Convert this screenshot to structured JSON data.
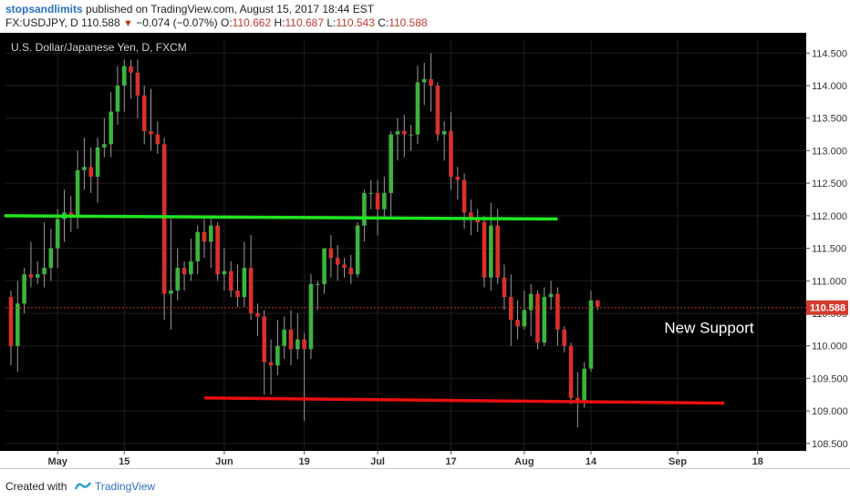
{
  "header": {
    "author": "stopsandlimits",
    "published": "published on TradingView.com, August 15, 2017 18:44 EST",
    "symbol": "FX:USDJPY, D",
    "price": "110.588",
    "change": "−0.074 (−0.07%)",
    "o_label": "O:",
    "o_value": "110.662",
    "h_label": "H:",
    "h_value": "110.687",
    "l_label": "L:",
    "l_value": "110.543",
    "c_label": "C:",
    "c_value": "110.588"
  },
  "footer": {
    "created_with": "Created with",
    "brand": "TradingView",
    "logo_icon": "tradingview-logo-icon"
  },
  "colors": {
    "bull": "#3cb43c",
    "bear": "#d9302c",
    "support_line": "#1fe61f",
    "resistance_line": "#e80f0f",
    "background": "#000000",
    "grid": "#1e1e1e"
  },
  "chart_data": {
    "type": "candlestick",
    "title": "U.S. Dollar/Japanese Yen, D, FXCM",
    "ylim": [
      108.4,
      114.7
    ],
    "y_ticks": [
      "114.500",
      "114.000",
      "113.500",
      "113.000",
      "112.500",
      "112.000",
      "111.500",
      "111.000",
      "110.500",
      "110.000",
      "109.500",
      "109.000",
      "108.500"
    ],
    "x_labels": [
      {
        "label": "May",
        "index": 7
      },
      {
        "label": "15",
        "index": 17
      },
      {
        "label": "Jun",
        "index": 32
      },
      {
        "label": "19",
        "index": 44
      },
      {
        "label": "Jul",
        "index": 55
      },
      {
        "label": "17",
        "index": 66
      },
      {
        "label": "Aug",
        "index": 77
      },
      {
        "label": "14",
        "index": 87
      },
      {
        "label": "Sep",
        "index": 100
      },
      {
        "label": "18",
        "index": 112
      }
    ],
    "candles": [
      [
        110.75,
        110.0,
        110.85,
        109.7
      ],
      [
        110.0,
        110.65,
        111.0,
        109.6
      ],
      [
        110.65,
        111.1,
        111.2,
        110.5
      ],
      [
        111.1,
        111.05,
        111.6,
        110.9
      ],
      [
        111.05,
        111.1,
        111.3,
        110.95
      ],
      [
        111.1,
        111.2,
        111.9,
        110.9
      ],
      [
        111.2,
        111.5,
        111.8,
        111.0
      ],
      [
        111.5,
        111.95,
        112.1,
        111.2
      ],
      [
        111.95,
        112.05,
        112.4,
        111.6
      ],
      [
        112.05,
        112.0,
        112.3,
        111.75
      ],
      [
        112.0,
        112.7,
        113.0,
        111.8
      ],
      [
        112.7,
        112.75,
        113.2,
        112.4
      ],
      [
        112.75,
        112.6,
        113.05,
        112.35
      ],
      [
        112.6,
        113.05,
        113.2,
        112.2
      ],
      [
        113.05,
        113.1,
        113.5,
        112.9
      ],
      [
        113.1,
        113.6,
        113.9,
        112.9
      ],
      [
        113.6,
        114.0,
        114.3,
        113.4
      ],
      [
        114.0,
        114.3,
        114.4,
        113.6
      ],
      [
        114.3,
        114.2,
        114.4,
        113.8
      ],
      [
        114.2,
        113.85,
        114.4,
        113.5
      ],
      [
        113.85,
        113.3,
        114.0,
        113.1
      ],
      [
        113.3,
        113.25,
        113.95,
        113.0
      ],
      [
        113.25,
        113.1,
        113.45,
        112.95
      ],
      [
        113.1,
        110.8,
        113.2,
        110.4
      ],
      [
        110.8,
        110.85,
        111.95,
        110.25
      ],
      [
        110.85,
        111.2,
        111.5,
        110.7
      ],
      [
        111.2,
        111.1,
        111.3,
        110.85
      ],
      [
        111.1,
        111.3,
        111.65,
        111.0
      ],
      [
        111.3,
        111.75,
        111.85,
        111.1
      ],
      [
        111.75,
        111.6,
        111.95,
        111.35
      ],
      [
        111.6,
        111.85,
        111.95,
        111.2
      ],
      [
        111.85,
        111.1,
        111.9,
        111.0
      ],
      [
        111.1,
        111.15,
        111.5,
        110.85
      ],
      [
        111.15,
        110.85,
        111.3,
        110.75
      ],
      [
        110.85,
        110.75,
        111.25,
        110.6
      ],
      [
        110.75,
        111.2,
        111.6,
        110.6
      ],
      [
        111.2,
        110.5,
        111.7,
        110.4
      ],
      [
        110.5,
        110.45,
        110.65,
        110.15
      ],
      [
        110.45,
        109.75,
        110.55,
        109.25
      ],
      [
        109.75,
        109.7,
        110.1,
        109.25
      ],
      [
        109.7,
        110.0,
        110.4,
        109.55
      ],
      [
        110.0,
        110.25,
        110.45,
        109.8
      ],
      [
        110.25,
        109.95,
        110.55,
        109.7
      ],
      [
        109.95,
        110.1,
        110.5,
        109.8
      ],
      [
        110.1,
        109.95,
        110.2,
        108.85
      ],
      [
        109.95,
        110.95,
        111.1,
        109.8
      ],
      [
        110.95,
        110.95,
        111.0,
        110.55
      ],
      [
        110.95,
        111.5,
        111.5,
        110.8
      ],
      [
        111.5,
        111.35,
        111.7,
        111.05
      ],
      [
        111.35,
        111.25,
        111.55,
        111.0
      ],
      [
        111.25,
        111.2,
        111.35,
        111.05
      ],
      [
        111.2,
        111.1,
        111.4,
        110.95
      ],
      [
        111.1,
        111.85,
        111.9,
        111.05
      ],
      [
        111.85,
        112.35,
        112.4,
        111.6
      ],
      [
        112.35,
        112.35,
        112.55,
        112.1
      ],
      [
        112.35,
        112.1,
        112.55,
        111.7
      ],
      [
        112.1,
        112.35,
        112.6,
        111.95
      ],
      [
        112.35,
        113.25,
        113.3,
        111.95
      ],
      [
        113.25,
        113.3,
        113.5,
        112.85
      ],
      [
        113.3,
        113.25,
        113.55,
        112.9
      ],
      [
        113.25,
        113.25,
        113.4,
        113.0
      ],
      [
        113.25,
        114.05,
        114.3,
        113.1
      ],
      [
        114.05,
        114.1,
        114.35,
        113.7
      ],
      [
        114.1,
        114.0,
        114.5,
        113.6
      ],
      [
        114.0,
        113.25,
        114.05,
        113.15
      ],
      [
        113.25,
        113.3,
        113.45,
        112.85
      ],
      [
        113.3,
        112.6,
        113.6,
        112.4
      ],
      [
        112.6,
        112.55,
        112.75,
        112.25
      ],
      [
        112.55,
        112.05,
        112.65,
        111.8
      ],
      [
        112.05,
        111.95,
        112.25,
        111.7
      ],
      [
        111.95,
        111.9,
        112.1,
        111.75
      ],
      [
        111.9,
        111.05,
        112.0,
        110.9
      ],
      [
        111.05,
        111.85,
        112.2,
        110.85
      ],
      [
        111.85,
        111.05,
        112.1,
        110.95
      ],
      [
        111.05,
        110.75,
        111.25,
        110.55
      ],
      [
        110.75,
        110.4,
        111.1,
        110.0
      ],
      [
        110.4,
        110.3,
        110.7,
        110.1
      ],
      [
        110.3,
        110.55,
        110.85,
        110.25
      ],
      [
        110.55,
        110.8,
        110.95,
        110.15
      ],
      [
        110.8,
        110.05,
        110.85,
        109.95
      ],
      [
        110.05,
        110.75,
        110.9,
        110.0
      ],
      [
        110.75,
        110.8,
        111.0,
        110.55
      ],
      [
        110.8,
        110.25,
        110.9,
        110.0
      ],
      [
        110.25,
        110.0,
        110.3,
        109.9
      ],
      [
        110.0,
        109.2,
        110.05,
        109.1
      ],
      [
        109.2,
        109.15,
        109.6,
        108.75
      ],
      [
        109.15,
        109.65,
        109.75,
        109.05
      ],
      [
        109.65,
        110.7,
        110.85,
        109.6
      ],
      [
        110.7,
        110.6,
        110.7,
        110.55
      ]
    ],
    "lines": [
      {
        "name": "support",
        "from": [
          -1,
          112.0
        ],
        "to": [
          82,
          111.95
        ]
      },
      {
        "name": "resistance",
        "from": [
          29,
          109.2
        ],
        "to": [
          107,
          109.12
        ]
      }
    ],
    "last_price_label": "110.588",
    "last_price": 110.588,
    "annotation": {
      "text": "New Support",
      "at_index": 98,
      "price": 110.2
    }
  }
}
